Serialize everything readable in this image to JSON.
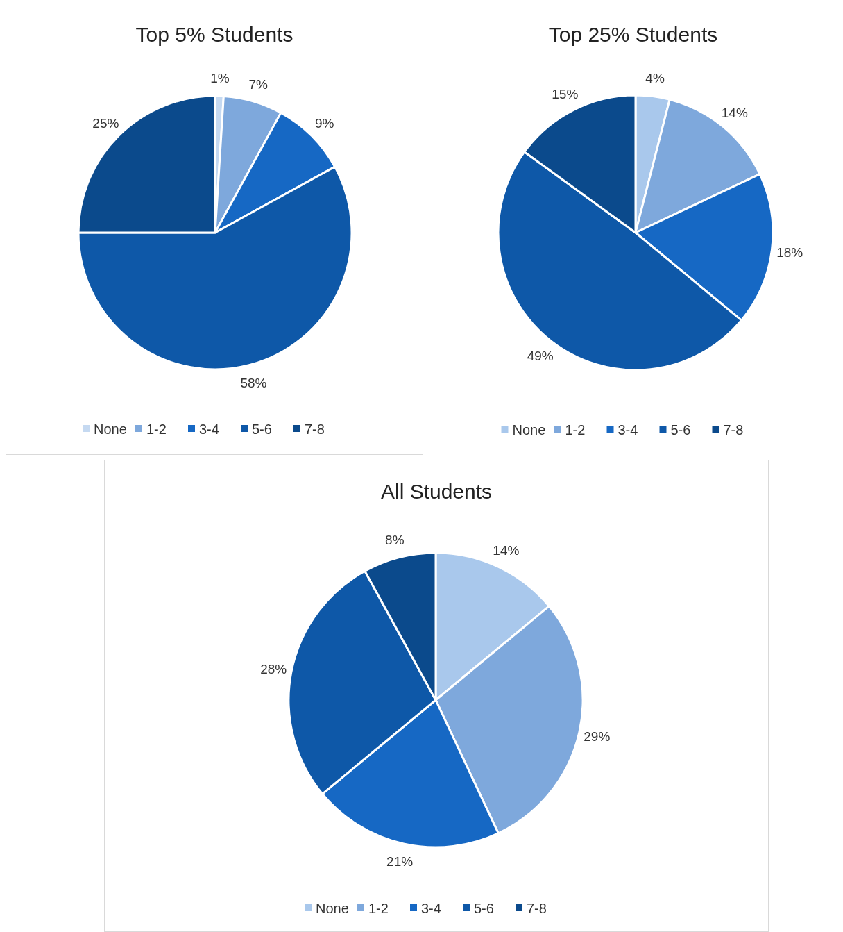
{
  "chart_data": [
    {
      "type": "pie",
      "title": "Top 5% Students",
      "categories": [
        "None",
        "1-2",
        "3-4",
        "5-6",
        "7-8"
      ],
      "values": [
        1,
        7,
        9,
        58,
        25
      ],
      "value_labels": [
        "1%",
        "7%",
        "9%",
        "58%",
        "25%"
      ],
      "colors": [
        "#c5d9f1",
        "#7ea8dc",
        "#1668c4",
        "#0e58a8",
        "#0b4a8c"
      ],
      "legend": "bottom"
    },
    {
      "type": "pie",
      "title": "Top 25% Students",
      "categories": [
        "None",
        "1-2",
        "3-4",
        "5-6",
        "7-8"
      ],
      "values": [
        4,
        14,
        18,
        49,
        15
      ],
      "value_labels": [
        "4%",
        "14%",
        "18%",
        "49%",
        "15%"
      ],
      "colors": [
        "#a9c8ec",
        "#7ea8dc",
        "#1668c4",
        "#0e58a8",
        "#0b4a8c"
      ],
      "legend": "bottom"
    },
    {
      "type": "pie",
      "title": "All Students",
      "categories": [
        "None",
        "1-2",
        "3-4",
        "5-6",
        "7-8"
      ],
      "values": [
        14,
        29,
        21,
        28,
        8
      ],
      "value_labels": [
        "14%",
        "29%",
        "21%",
        "28%",
        "8%"
      ],
      "colors": [
        "#a9c8ec",
        "#7ea8dc",
        "#1668c4",
        "#0e58a8",
        "#0b4a8c"
      ],
      "legend": "bottom"
    }
  ]
}
